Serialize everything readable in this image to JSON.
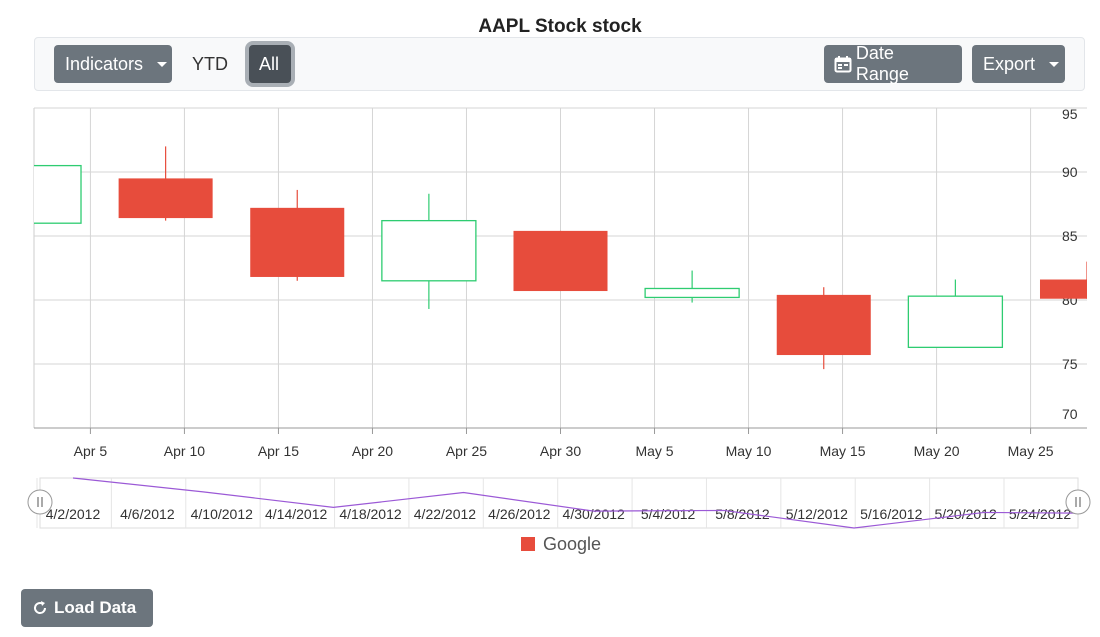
{
  "toolbar": {
    "indicators": "Indicators",
    "ytd": "YTD",
    "all": "All",
    "date_range": "Date Range",
    "export": "Export"
  },
  "chart_data": {
    "type": "candlestick",
    "title": "AAPL Stock stock",
    "x": [
      "2012-04-02",
      "2012-04-09",
      "2012-04-16",
      "2012-04-23",
      "2012-04-30",
      "2012-05-07",
      "2012-05-14",
      "2012-05-21",
      "2012-05-28"
    ],
    "series": [
      {
        "name": "Google",
        "color": "#e74c3c",
        "up_color": "#2ecc71",
        "open": [
          86.0,
          89.5,
          87.2,
          81.5,
          85.4,
          80.2,
          80.4,
          76.3,
          81.6
        ],
        "high": [
          90.5,
          92.0,
          88.6,
          88.3,
          85.4,
          82.3,
          81.0,
          81.6,
          83.0
        ],
        "low": [
          86.0,
          86.2,
          81.5,
          79.3,
          80.7,
          79.8,
          74.6,
          76.3,
          80.1
        ],
        "close": [
          90.5,
          86.4,
          81.8,
          86.2,
          80.7,
          80.9,
          75.7,
          80.3,
          80.1
        ]
      }
    ],
    "xlim": [
      "2012-04-02",
      "2012-05-28"
    ],
    "xticks": [
      {
        "value": "2012-04-05",
        "label": "Apr 5"
      },
      {
        "value": "2012-04-10",
        "label": "Apr 10"
      },
      {
        "value": "2012-04-15",
        "label": "Apr 15"
      },
      {
        "value": "2012-04-20",
        "label": "Apr 20"
      },
      {
        "value": "2012-04-25",
        "label": "Apr 25"
      },
      {
        "value": "2012-04-30",
        "label": "Apr 30"
      },
      {
        "value": "2012-05-05",
        "label": "May 5"
      },
      {
        "value": "2012-05-10",
        "label": "May 10"
      },
      {
        "value": "2012-05-15",
        "label": "May 15"
      },
      {
        "value": "2012-05-20",
        "label": "May 20"
      },
      {
        "value": "2012-05-25",
        "label": "May 25"
      }
    ],
    "ylim": [
      70,
      95
    ],
    "yticks": [
      70,
      75,
      80,
      85,
      90,
      95
    ],
    "grid": true,
    "navigator": {
      "color": "#9b59d6",
      "xticks": [
        {
          "value": "2012-04-02",
          "label": "4/2/2012"
        },
        {
          "value": "2012-04-06",
          "label": "4/6/2012"
        },
        {
          "value": "2012-04-10",
          "label": "4/10/2012"
        },
        {
          "value": "2012-04-14",
          "label": "4/14/2012"
        },
        {
          "value": "2012-04-18",
          "label": "4/18/2012"
        },
        {
          "value": "2012-04-22",
          "label": "4/22/2012"
        },
        {
          "value": "2012-04-26",
          "label": "4/26/2012"
        },
        {
          "value": "2012-04-30",
          "label": "4/30/2012"
        },
        {
          "value": "2012-05-04",
          "label": "5/4/2012"
        },
        {
          "value": "2012-05-08",
          "label": "5/8/2012"
        },
        {
          "value": "2012-05-12",
          "label": "5/12/2012"
        },
        {
          "value": "2012-05-16",
          "label": "5/16/2012"
        },
        {
          "value": "2012-05-20",
          "label": "5/20/2012"
        },
        {
          "value": "2012-05-24",
          "label": "5/24/2012"
        }
      ]
    }
  },
  "load_button": "Load Data"
}
